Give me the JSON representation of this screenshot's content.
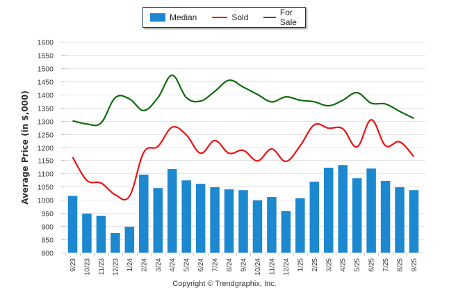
{
  "chart_data": {
    "type": "bar",
    "title": "",
    "xlabel": "",
    "ylabel": "Average Price (in $,000)",
    "ylim": [
      800,
      1600
    ],
    "ytick_step": 50,
    "grid": true,
    "legend_position": "top-center",
    "categories": [
      "9/23",
      "10/23",
      "11/23",
      "12/23",
      "1/24",
      "2/24",
      "3/24",
      "4/24",
      "5/24",
      "6/24",
      "7/24",
      "8/24",
      "9/24",
      "10/24",
      "11/24",
      "12/24",
      "1/25",
      "2/25",
      "3/25",
      "4/25",
      "5/25",
      "6/25",
      "7/25",
      "8/25",
      "9/25"
    ],
    "series": [
      {
        "name": "Median",
        "type": "bar",
        "color": "#1c88d0",
        "values": [
          1015,
          948,
          940,
          874,
          898,
          1096,
          1045,
          1117,
          1074,
          1061,
          1048,
          1040,
          1037,
          998,
          1011,
          958,
          1006,
          1069,
          1122,
          1132,
          1082,
          1119,
          1072,
          1048,
          1037
        ]
      },
      {
        "name": "Sold",
        "type": "line",
        "color": "#ee1111",
        "values": [
          1162,
          1074,
          1064,
          1019,
          1014,
          1180,
          1203,
          1276,
          1246,
          1177,
          1225,
          1177,
          1188,
          1148,
          1193,
          1146,
          1205,
          1285,
          1272,
          1270,
          1201,
          1304,
          1206,
          1220,
          1164
        ]
      },
      {
        "name": "For Sale",
        "type": "line",
        "color": "#0e6b0e",
        "values": [
          1300,
          1288,
          1292,
          1388,
          1383,
          1339,
          1388,
          1473,
          1388,
          1375,
          1412,
          1454,
          1428,
          1400,
          1372,
          1391,
          1378,
          1372,
          1357,
          1378,
          1407,
          1367,
          1364,
          1336,
          1309
        ]
      }
    ]
  },
  "legend": {
    "items": [
      {
        "label": "Median",
        "color": "#1c88d0"
      },
      {
        "label": "Sold",
        "color": "#ee1111"
      },
      {
        "label": "For Sale",
        "color": "#0e6b0e"
      }
    ]
  },
  "footer": {
    "copyright": "Copyright © Trendgraphix, Inc."
  }
}
